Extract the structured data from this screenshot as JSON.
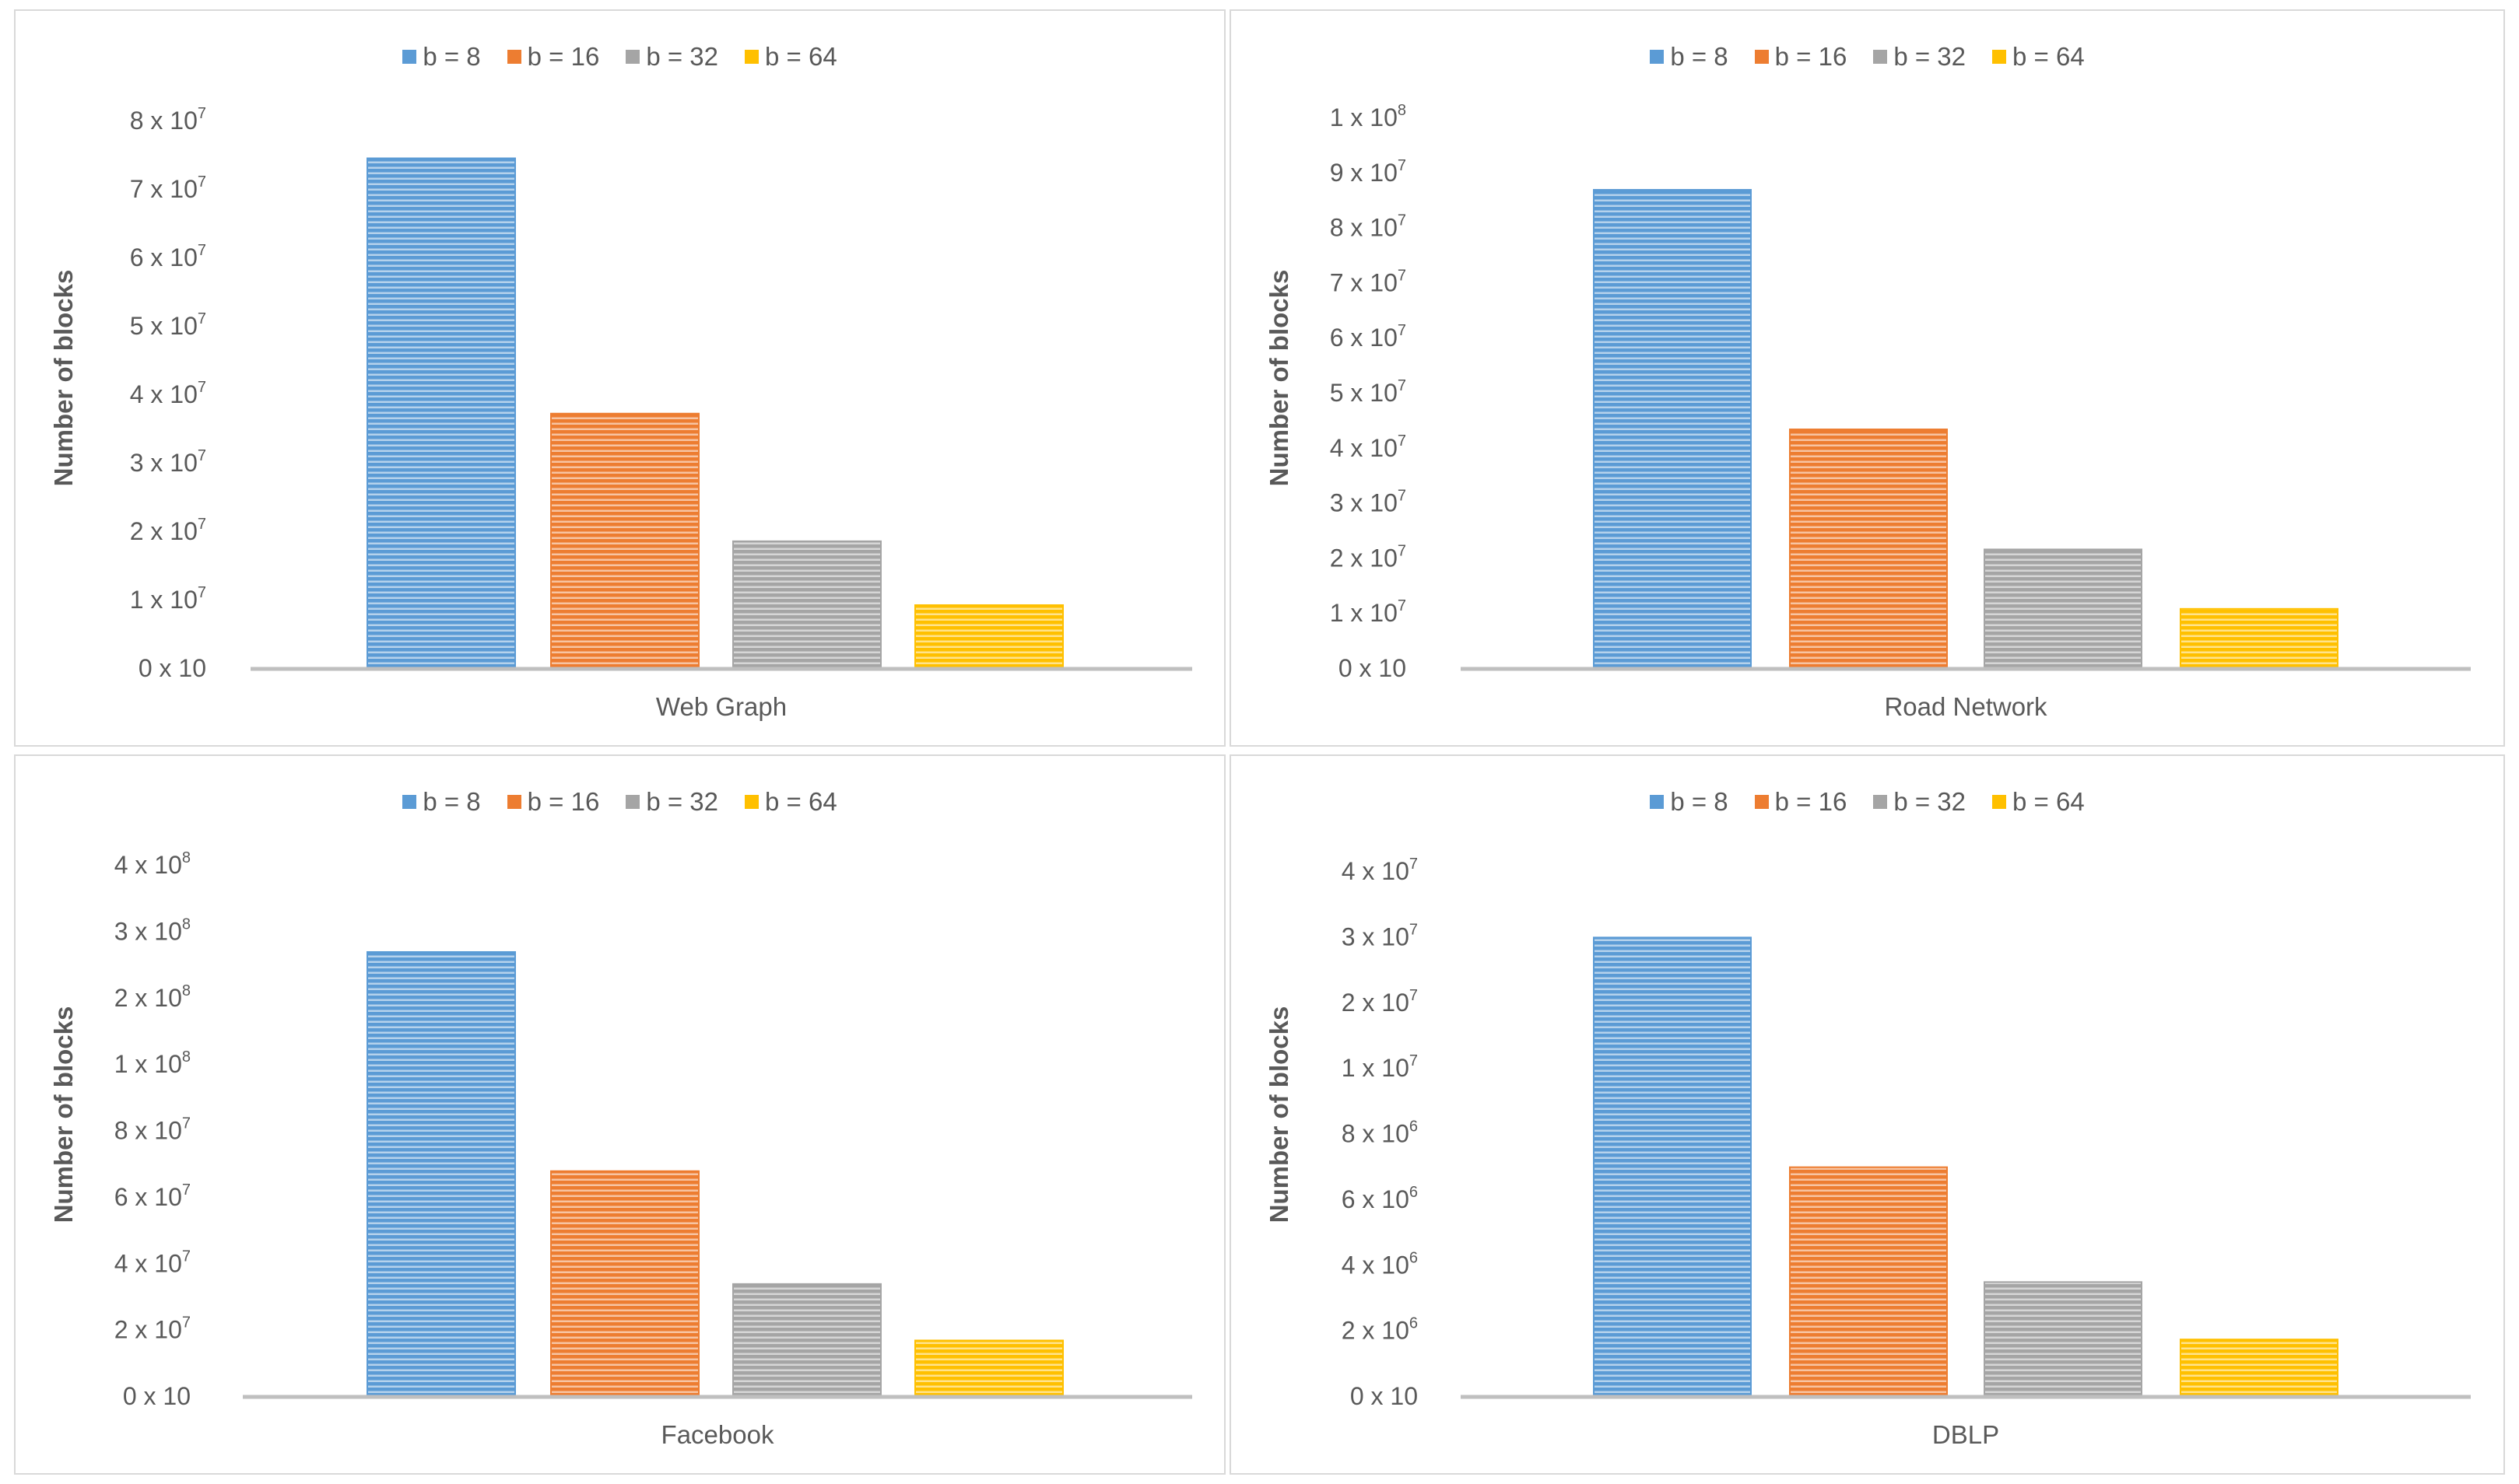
{
  "legend": [
    "b = 8",
    "b = 16",
    "b = 32",
    "b = 64"
  ],
  "colors": {
    "b8": "#5b9bd5",
    "b16": "#ed7d31",
    "b32": "#a5a5a5",
    "b64": "#ffc000",
    "axis": "#bfbfbf",
    "border": "#d9d9d9",
    "text": "#595959"
  },
  "chart_data": [
    {
      "type": "bar",
      "title": "",
      "categories": [
        "Web Graph"
      ],
      "xlabel": "Web Graph",
      "ylabel": "Number of blocks",
      "series": [
        {
          "name": "b = 8",
          "values": [
            74600000
          ]
        },
        {
          "name": "b = 16",
          "values": [
            37300000
          ]
        },
        {
          "name": "b = 32",
          "values": [
            18650000
          ]
        },
        {
          "name": "b = 64",
          "values": [
            9320000
          ]
        }
      ],
      "yticks": [
        {
          "base": "0 x 10",
          "exp": ""
        },
        {
          "base": "1 x 10",
          "exp": "7"
        },
        {
          "base": "2 x 10",
          "exp": "7"
        },
        {
          "base": "3 x 10",
          "exp": "7"
        },
        {
          "base": "4 x 10",
          "exp": "7"
        },
        {
          "base": "5 x 10",
          "exp": "7"
        },
        {
          "base": "6 x 10",
          "exp": "7"
        },
        {
          "base": "7 x 10",
          "exp": "7"
        },
        {
          "base": "8 x 10",
          "exp": "7"
        }
      ],
      "ylim": [
        0,
        80000000
      ],
      "legend_position": "top-center",
      "grid": false
    },
    {
      "type": "bar",
      "title": "",
      "categories": [
        "Road Network"
      ],
      "xlabel": "Road Network",
      "ylabel": "Number of blocks",
      "series": [
        {
          "name": "b = 8",
          "values": [
            87000000
          ]
        },
        {
          "name": "b = 16",
          "values": [
            43500000
          ]
        },
        {
          "name": "b = 32",
          "values": [
            21700000
          ]
        },
        {
          "name": "b = 64",
          "values": [
            10900000
          ]
        }
      ],
      "yticks": [
        {
          "base": "0 x 10",
          "exp": ""
        },
        {
          "base": "1 x 10",
          "exp": "7"
        },
        {
          "base": "2 x 10",
          "exp": "7"
        },
        {
          "base": "3 x 10",
          "exp": "7"
        },
        {
          "base": "4 x 10",
          "exp": "7"
        },
        {
          "base": "5 x 10",
          "exp": "7"
        },
        {
          "base": "6 x 10",
          "exp": "7"
        },
        {
          "base": "7 x 10",
          "exp": "7"
        },
        {
          "base": "8 x 10",
          "exp": "7"
        },
        {
          "base": "9 x 10",
          "exp": "7"
        },
        {
          "base": "1 x 10",
          "exp": "8"
        }
      ],
      "ylim": [
        0,
        100000000
      ],
      "legend_position": "top-center",
      "grid": false
    },
    {
      "type": "bar",
      "title": "",
      "categories": [
        "Facebook"
      ],
      "xlabel": "Facebook",
      "ylabel": "Number of blocks",
      "series": [
        {
          "name": "b = 8",
          "values": [
            270000000
          ]
        },
        {
          "name": "b = 16",
          "values": [
            68000000
          ]
        },
        {
          "name": "b = 32",
          "values": [
            34000000
          ]
        },
        {
          "name": "b = 64",
          "values": [
            17000000
          ]
        }
      ],
      "yticks": [
        {
          "base": "0 x 10",
          "exp": ""
        },
        {
          "base": "2 x 10",
          "exp": "7"
        },
        {
          "base": "4 x 10",
          "exp": "7"
        },
        {
          "base": "6 x 10",
          "exp": "7"
        },
        {
          "base": "8 x 10",
          "exp": "7"
        },
        {
          "base": "1 x 10",
          "exp": "8"
        },
        {
          "base": "2 x 10",
          "exp": "8"
        },
        {
          "base": "3 x 10",
          "exp": "8"
        },
        {
          "base": "4 x 10",
          "exp": "8"
        }
      ],
      "ylim_ticks": [
        0,
        8
      ],
      "legend_position": "top-center",
      "grid": false
    },
    {
      "type": "bar",
      "title": "",
      "categories": [
        "DBLP"
      ],
      "xlabel": "DBLP",
      "ylabel": "Number of blocks",
      "series": [
        {
          "name": "b = 8",
          "values": [
            30000000
          ]
        },
        {
          "name": "b = 16",
          "values": [
            7000000
          ]
        },
        {
          "name": "b = 32",
          "values": [
            3500000
          ]
        },
        {
          "name": "b = 64",
          "values": [
            1750000
          ]
        }
      ],
      "yticks": [
        {
          "base": "0 x 10",
          "exp": ""
        },
        {
          "base": "2 x 10",
          "exp": "6"
        },
        {
          "base": "4 x 10",
          "exp": "6"
        },
        {
          "base": "6 x 10",
          "exp": "6"
        },
        {
          "base": "8 x 10",
          "exp": "6"
        },
        {
          "base": "1 x 10",
          "exp": "7"
        },
        {
          "base": "2 x 10",
          "exp": "7"
        },
        {
          "base": "3 x 10",
          "exp": "7"
        },
        {
          "base": "4 x 10",
          "exp": "7"
        }
      ],
      "legend_position": "top-center",
      "grid": false
    }
  ]
}
